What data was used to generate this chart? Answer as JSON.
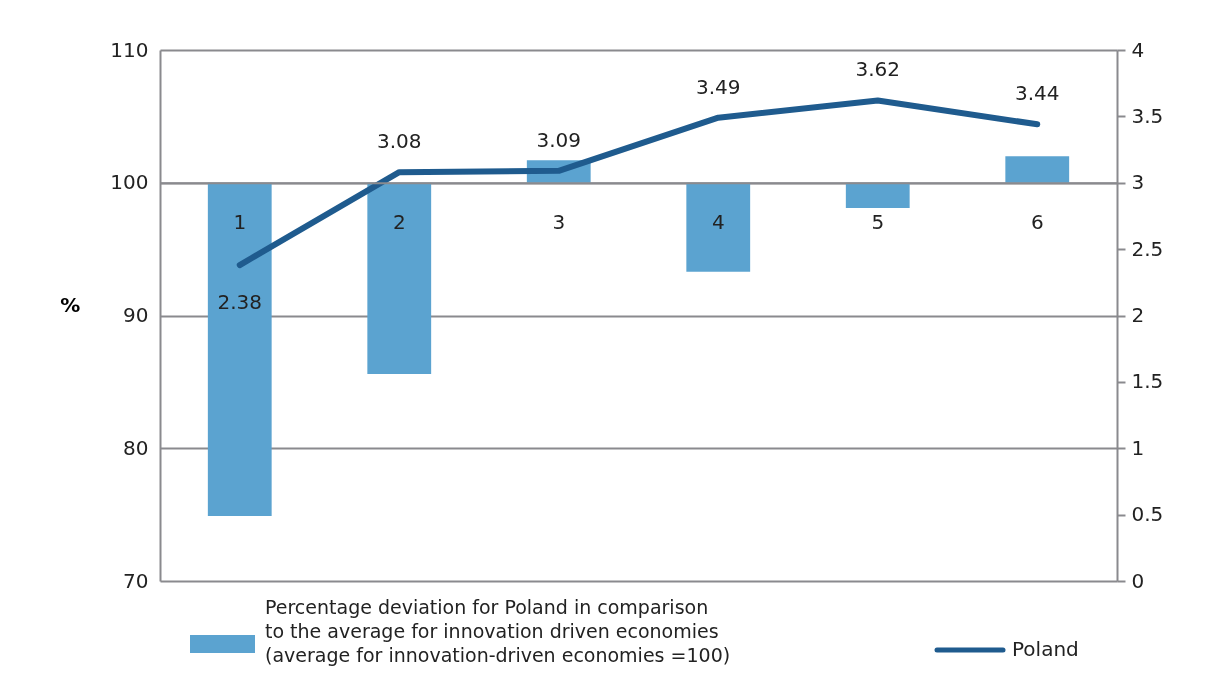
{
  "chart_data": {
    "type": "bar",
    "categories": [
      "1",
      "2",
      "3",
      "4",
      "5",
      "6"
    ],
    "ylabel": "%",
    "ylim": [
      70,
      110
    ],
    "yticks": [
      70,
      80,
      90,
      100,
      110
    ],
    "y2lim": [
      0,
      4
    ],
    "y2ticks": [
      0,
      0.5,
      1,
      1.5,
      2,
      2.5,
      3,
      3.5,
      4
    ],
    "grid": "y",
    "legend": "bottom",
    "series": [
      {
        "name": "Percentage deviation for Poland in comparison to the average for innovation driven economies (average for innovation-driven economies =100)",
        "color": "#5ba3d0",
        "base": [
          100,
          100,
          100,
          100,
          100,
          100
        ],
        "values": [
          -25.1,
          -14.4,
          1.7,
          -6.7,
          -1.9,
          2.0
        ]
      },
      {
        "name": "Poland",
        "type": "line",
        "axis": "y2",
        "color": "#1f5b8e",
        "data_labels": true,
        "values": [
          2.38,
          3.08,
          3.09,
          3.49,
          3.62,
          3.44
        ]
      }
    ]
  }
}
